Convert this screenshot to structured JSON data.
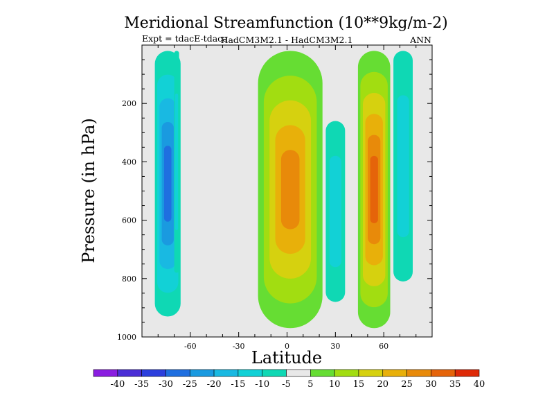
{
  "chart_data": {
    "type": "heatmap",
    "title": "Meridional Streamfunction (10**9kg/m-2)",
    "subtitle_left": "Expt = tdacE-tdaca",
    "subtitle_center": "HadCM3M2.1 - HadCM3M2.1",
    "subtitle_right": "ANN",
    "xlabel": "Latitude",
    "ylabel": "Pressure (in hPa)",
    "xlim": [
      -90,
      90
    ],
    "ylim": [
      1000,
      0
    ],
    "x_ticks": [
      -60,
      -30,
      0,
      30,
      60
    ],
    "y_ticks": [
      200,
      400,
      600,
      800,
      1000
    ],
    "background_color": "#e8e8e8",
    "colorbar": {
      "levels": [
        -40,
        -35,
        -30,
        -25,
        -20,
        -15,
        -10,
        -5,
        5,
        10,
        15,
        20,
        25,
        30,
        35,
        40
      ],
      "colors": [
        "#8a1de0",
        "#4b2fd6",
        "#2c3fdd",
        "#1f6fe0",
        "#1a9ae0",
        "#19b9e2",
        "#12d1d6",
        "#0fd8b4",
        "#e8e8e8",
        "#66dd33",
        "#a2dd11",
        "#d6d10f",
        "#e8b00a",
        "#e88a0a",
        "#e5640a",
        "#de2a08"
      ]
    },
    "features": [
      {
        "name": "southern-negative-cell",
        "lat_range": [
          -82,
          -66
        ],
        "pressure_range": [
          20,
          930
        ],
        "min_value": -25
      },
      {
        "name": "southern-narrow-cell",
        "lat_range": [
          -70,
          -67
        ],
        "pressure_range": [
          20,
          780
        ],
        "min_value": -10
      },
      {
        "name": "tropical-positive-cell",
        "lat_range": [
          -18,
          22
        ],
        "pressure_range": [
          20,
          970
        ],
        "max_value": 25
      },
      {
        "name": "northern-cell-30N",
        "lat_range": [
          24,
          36
        ],
        "pressure_range": [
          260,
          880
        ],
        "min_value": -10
      },
      {
        "name": "northern-positive-cell-50N",
        "lat_range": [
          44,
          64
        ],
        "pressure_range": [
          20,
          970
        ],
        "max_value": 30
      },
      {
        "name": "northern-negative-cell-70N",
        "lat_range": [
          66,
          78
        ],
        "pressure_range": [
          20,
          810
        ],
        "min_value": -10
      }
    ]
  }
}
